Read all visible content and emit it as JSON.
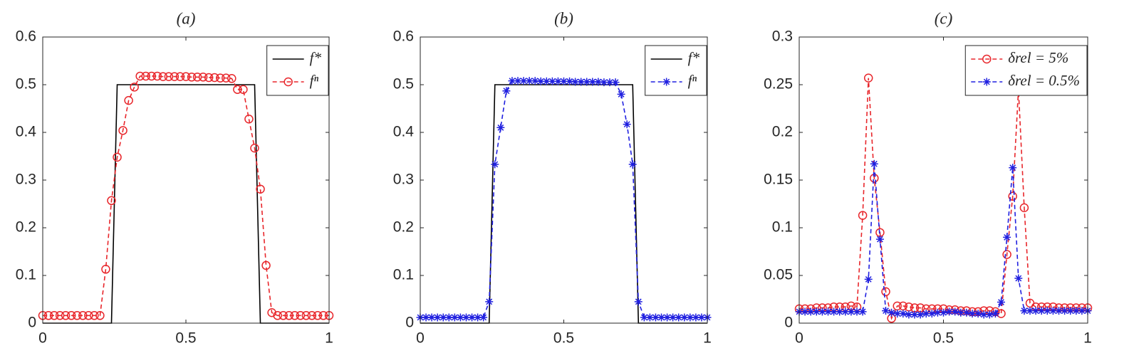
{
  "chart_data": [
    {
      "type": "line",
      "title": "(a)",
      "xlim": [
        0,
        1
      ],
      "xticks": [
        0,
        0.5,
        1
      ],
      "ylim": [
        0,
        0.6
      ],
      "yticks": [
        0,
        0.1,
        0.2,
        0.3,
        0.4,
        0.5,
        0.6
      ],
      "legend": "upper right",
      "series": [
        {
          "name": "f*",
          "color": "#000000",
          "linestyle": "solid",
          "x": [
            0,
            0.24,
            0.26,
            0.74,
            0.76,
            1
          ],
          "values": [
            0,
            0,
            0.5,
            0.5,
            0,
            0
          ]
        },
        {
          "name": "fⁿ",
          "color": "#e8262b",
          "linestyle": "dashed",
          "marker": "o",
          "x": [
            0,
            0.02,
            0.04,
            0.06,
            0.08,
            0.1,
            0.12,
            0.14,
            0.16,
            0.18,
            0.2,
            0.22,
            0.24,
            0.26,
            0.28,
            0.3,
            0.32,
            0.34,
            0.36,
            0.38,
            0.4,
            0.42,
            0.44,
            0.46,
            0.48,
            0.5,
            0.52,
            0.54,
            0.56,
            0.58,
            0.6,
            0.62,
            0.64,
            0.66,
            0.68,
            0.7,
            0.72,
            0.74,
            0.76,
            0.78,
            0.8,
            0.82,
            0.84,
            0.86,
            0.88,
            0.9,
            0.92,
            0.94,
            0.96,
            0.98,
            1
          ],
          "values": [
            0.016,
            0.016,
            0.016,
            0.016,
            0.016,
            0.016,
            0.016,
            0.016,
            0.016,
            0.016,
            0.016,
            0.113,
            0.257,
            0.348,
            0.404,
            0.467,
            0.495,
            0.518,
            0.518,
            0.518,
            0.518,
            0.517,
            0.517,
            0.517,
            0.517,
            0.517,
            0.516,
            0.516,
            0.516,
            0.515,
            0.515,
            0.514,
            0.514,
            0.513,
            0.49,
            0.49,
            0.428,
            0.367,
            0.281,
            0.121,
            0.022,
            0.016,
            0.016,
            0.016,
            0.016,
            0.016,
            0.016,
            0.016,
            0.016,
            0.016,
            0.016
          ]
        }
      ]
    },
    {
      "type": "line",
      "title": "(b)",
      "xlim": [
        0,
        1
      ],
      "xticks": [
        0,
        0.5,
        1
      ],
      "ylim": [
        0,
        0.6
      ],
      "yticks": [
        0,
        0.1,
        0.2,
        0.3,
        0.4,
        0.5,
        0.6
      ],
      "legend": "upper right",
      "series": [
        {
          "name": "f*",
          "color": "#000000",
          "linestyle": "solid",
          "x": [
            0,
            0.24,
            0.26,
            0.74,
            0.76,
            1
          ],
          "values": [
            0,
            0,
            0.5,
            0.5,
            0,
            0
          ]
        },
        {
          "name": "fⁿ",
          "color": "#2020e0",
          "linestyle": "dashed",
          "marker": "*",
          "x": [
            0,
            0.02,
            0.04,
            0.06,
            0.08,
            0.1,
            0.12,
            0.14,
            0.16,
            0.18,
            0.2,
            0.22,
            0.24,
            0.26,
            0.28,
            0.3,
            0.32,
            0.34,
            0.36,
            0.38,
            0.4,
            0.42,
            0.44,
            0.46,
            0.48,
            0.5,
            0.52,
            0.54,
            0.56,
            0.58,
            0.6,
            0.62,
            0.64,
            0.66,
            0.68,
            0.7,
            0.72,
            0.74,
            0.76,
            0.78,
            0.8,
            0.82,
            0.84,
            0.86,
            0.88,
            0.9,
            0.92,
            0.94,
            0.96,
            0.98,
            1
          ],
          "values": [
            0.012,
            0.012,
            0.012,
            0.012,
            0.012,
            0.012,
            0.012,
            0.012,
            0.012,
            0.012,
            0.012,
            0.012,
            0.045,
            0.333,
            0.41,
            0.487,
            0.508,
            0.508,
            0.508,
            0.508,
            0.508,
            0.507,
            0.507,
            0.507,
            0.507,
            0.507,
            0.507,
            0.506,
            0.506,
            0.506,
            0.506,
            0.506,
            0.505,
            0.505,
            0.505,
            0.48,
            0.417,
            0.333,
            0.045,
            0.012,
            0.012,
            0.012,
            0.012,
            0.012,
            0.012,
            0.012,
            0.012,
            0.012,
            0.012,
            0.012,
            0.012
          ]
        }
      ]
    },
    {
      "type": "line",
      "title": "(c)",
      "xlim": [
        0,
        1
      ],
      "xticks": [
        0,
        0.5,
        1
      ],
      "ylim": [
        0,
        0.3
      ],
      "yticks": [
        0,
        0.05,
        0.1,
        0.15,
        0.2,
        0.25,
        0.3
      ],
      "legend": "upper right",
      "series": [
        {
          "name": "δrel = 5%",
          "color": "#e8262b",
          "linestyle": "dashed",
          "marker": "o",
          "x": [
            0,
            0.02,
            0.04,
            0.06,
            0.08,
            0.1,
            0.12,
            0.14,
            0.16,
            0.18,
            0.2,
            0.22,
            0.24,
            0.26,
            0.28,
            0.3,
            0.32,
            0.34,
            0.36,
            0.38,
            0.4,
            0.42,
            0.44,
            0.46,
            0.48,
            0.5,
            0.52,
            0.54,
            0.56,
            0.58,
            0.6,
            0.62,
            0.64,
            0.66,
            0.68,
            0.7,
            0.72,
            0.74,
            0.76,
            0.78,
            0.8,
            0.82,
            0.84,
            0.86,
            0.88,
            0.9,
            0.92,
            0.94,
            0.96,
            0.98,
            1
          ],
          "values": [
            0.015,
            0.015,
            0.015,
            0.016,
            0.016,
            0.016,
            0.017,
            0.017,
            0.017,
            0.018,
            0.017,
            0.113,
            0.257,
            0.152,
            0.095,
            0.033,
            0.005,
            0.018,
            0.018,
            0.017,
            0.016,
            0.016,
            0.015,
            0.015,
            0.015,
            0.015,
            0.014,
            0.014,
            0.013,
            0.013,
            0.012,
            0.012,
            0.013,
            0.013,
            0.012,
            0.01,
            0.072,
            0.133,
            0.245,
            0.121,
            0.021,
            0.017,
            0.017,
            0.017,
            0.017,
            0.016,
            0.016,
            0.016,
            0.016,
            0.016,
            0.016
          ]
        },
        {
          "name": "δrel = 0.5%",
          "color": "#2020e0",
          "linestyle": "dashed",
          "marker": "*",
          "x": [
            0,
            0.02,
            0.04,
            0.06,
            0.08,
            0.1,
            0.12,
            0.14,
            0.16,
            0.18,
            0.2,
            0.22,
            0.24,
            0.26,
            0.28,
            0.3,
            0.32,
            0.34,
            0.36,
            0.38,
            0.4,
            0.42,
            0.44,
            0.46,
            0.48,
            0.5,
            0.52,
            0.54,
            0.56,
            0.58,
            0.6,
            0.62,
            0.64,
            0.66,
            0.68,
            0.7,
            0.72,
            0.74,
            0.76,
            0.78,
            0.8,
            0.82,
            0.84,
            0.86,
            0.88,
            0.9,
            0.92,
            0.94,
            0.96,
            0.98,
            1
          ],
          "values": [
            0.012,
            0.012,
            0.012,
            0.012,
            0.012,
            0.012,
            0.012,
            0.012,
            0.012,
            0.012,
            0.012,
            0.012,
            0.046,
            0.167,
            0.088,
            0.013,
            0.011,
            0.01,
            0.01,
            0.009,
            0.009,
            0.009,
            0.01,
            0.01,
            0.011,
            0.011,
            0.012,
            0.012,
            0.011,
            0.011,
            0.01,
            0.01,
            0.009,
            0.009,
            0.01,
            0.022,
            0.09,
            0.163,
            0.047,
            0.013,
            0.013,
            0.013,
            0.013,
            0.013,
            0.013,
            0.013,
            0.013,
            0.013,
            0.013,
            0.013,
            0.013
          ]
        }
      ]
    }
  ]
}
